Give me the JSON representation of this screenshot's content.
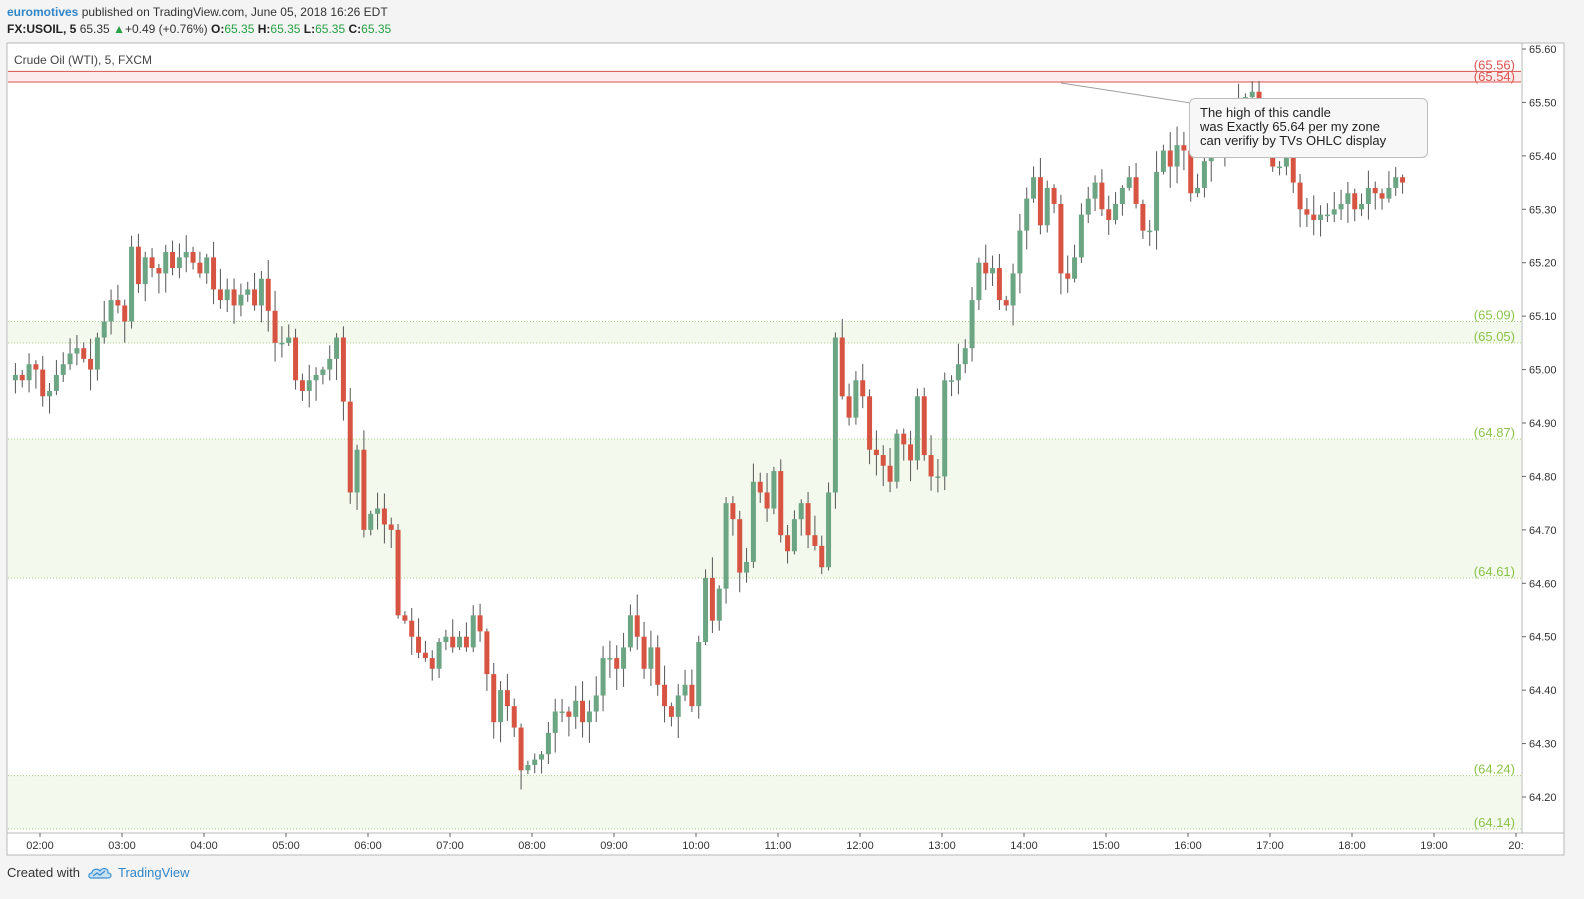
{
  "header": {
    "author": "euromotives",
    "published": " published on TradingView.com, June 05, 2018 16:26 EDT",
    "symbol": "FX:USOIL, 5",
    "price": "65.35",
    "change_arrow": "▲",
    "change": "+0.49 (+0.76%)",
    "o_label": "O:",
    "o_value": "65.35",
    "h_label": "H:",
    "h_value": "65.35",
    "l_label": "L:",
    "l_value": "65.35",
    "c_label": "C:",
    "c_value": "65.35"
  },
  "footer": {
    "created_with": "Created with",
    "brand": "TradingView",
    "logo_icon": "tradingview-cloud-icon"
  },
  "callout": {
    "lines": [
      "The high of this candle",
      "was Exactly 65.64 per my zone",
      "can verifiy by TVs OHLC display"
    ]
  },
  "colors": {
    "up": "#6ba583",
    "down": "#d75442",
    "resistance": "#d9534f",
    "support": "#8bc34a",
    "accent": "#2f86c9"
  },
  "chart_data": {
    "type": "candlestick",
    "legend_label": "Crude Oil (WTI), 5, FXCM",
    "ylim": [
      64.14,
      65.62
    ],
    "y_ticks": [
      "65.60",
      "65.50",
      "65.40",
      "65.30",
      "65.20",
      "65.10",
      "65.00",
      "64.90",
      "64.80",
      "64.70",
      "64.60",
      "64.50",
      "64.40",
      "64.30",
      "64.20"
    ],
    "x_range_hours": [
      1.65,
      20.1
    ],
    "x_ticks": [
      {
        "label": "02:00",
        "h": 2
      },
      {
        "label": "03:00",
        "h": 3
      },
      {
        "label": "04:00",
        "h": 4
      },
      {
        "label": "05:00",
        "h": 5
      },
      {
        "label": "06:00",
        "h": 6
      },
      {
        "label": "07:00",
        "h": 7
      },
      {
        "label": "08:00",
        "h": 8
      },
      {
        "label": "09:00",
        "h": 9
      },
      {
        "label": "10:00",
        "h": 10
      },
      {
        "label": "11:00",
        "h": 11
      },
      {
        "label": "12:00",
        "h": 12
      },
      {
        "label": "13:00",
        "h": 13
      },
      {
        "label": "14:00",
        "h": 14
      },
      {
        "label": "15:00",
        "h": 15
      },
      {
        "label": "16:00",
        "h": 16
      },
      {
        "label": "17:00",
        "h": 17
      },
      {
        "label": "18:00",
        "h": 18
      },
      {
        "label": "19:00",
        "h": 19
      },
      {
        "label": "20:",
        "h": 20
      }
    ],
    "resistance_zone": {
      "high": 65.56,
      "low": 65.54,
      "high_label": "(65.56)",
      "low_label": "(65.54)"
    },
    "support_levels": [
      {
        "value": 65.09,
        "label": "(65.09)"
      },
      {
        "value": 65.05,
        "label": "(65.05)"
      },
      {
        "value": 64.87,
        "label": "(64.87)"
      },
      {
        "value": 64.61,
        "label": "(64.61)"
      },
      {
        "value": 64.24,
        "label": "(64.24)"
      },
      {
        "value": 64.14,
        "label": "(64.14)"
      }
    ],
    "support_zones": [
      [
        65.05,
        65.09
      ],
      [
        64.61,
        64.87
      ],
      [
        64.14,
        64.24
      ]
    ],
    "annotation": {
      "target_h": 14.45,
      "target_price": 65.54
    },
    "closes": [
      64.99,
      64.98,
      65.01,
      65.0,
      64.95,
      64.96,
      64.99,
      65.01,
      65.03,
      65.04,
      65.02,
      65.0,
      65.06,
      65.09,
      65.13,
      65.12,
      65.09,
      65.23,
      65.16,
      65.21,
      65.19,
      65.18,
      65.22,
      65.19,
      65.21,
      65.22,
      65.2,
      65.18,
      65.21,
      65.15,
      65.13,
      65.15,
      65.12,
      65.14,
      65.15,
      65.12,
      65.17,
      65.11,
      65.05,
      65.05,
      65.06,
      64.98,
      64.96,
      64.98,
      64.99,
      65.0,
      65.02,
      65.06,
      64.94,
      64.77,
      64.85,
      64.7,
      64.73,
      64.74,
      64.71,
      64.7,
      64.54,
      64.53,
      64.5,
      64.47,
      64.46,
      64.44,
      64.49,
      64.5,
      64.48,
      64.5,
      64.48,
      64.54,
      64.51,
      64.43,
      64.34,
      64.4,
      64.37,
      64.33,
      64.25,
      64.26,
      64.27,
      64.28,
      64.32,
      64.36,
      64.36,
      64.35,
      64.38,
      64.34,
      64.36,
      64.39,
      64.46,
      64.46,
      64.44,
      64.48,
      64.54,
      64.5,
      64.44,
      64.48,
      64.41,
      64.37,
      64.35,
      64.39,
      64.41,
      64.37,
      64.49,
      64.61,
      64.53,
      64.59,
      64.75,
      64.72,
      64.62,
      64.64,
      64.79,
      64.77,
      64.74,
      64.81,
      64.69,
      64.66,
      64.72,
      64.75,
      64.69,
      64.67,
      64.63,
      64.77,
      65.06,
      64.95,
      64.91,
      64.98,
      64.95,
      64.85,
      64.84,
      64.82,
      64.79,
      64.88,
      64.86,
      64.83,
      64.95,
      64.84,
      64.8,
      64.8,
      64.98,
      64.98,
      65.01,
      65.04,
      65.13,
      65.2,
      65.18,
      65.19,
      65.13,
      65.12,
      65.18,
      65.26,
      65.32,
      65.36,
      65.27,
      65.34,
      65.31,
      65.18,
      65.17,
      65.21,
      65.29,
      65.32,
      65.35,
      65.3,
      65.28,
      65.31,
      65.34,
      65.36,
      65.31,
      65.26,
      65.26,
      65.37,
      65.41,
      65.38,
      65.42,
      65.41,
      65.33,
      65.34,
      65.39,
      65.42,
      65.43,
      65.41,
      65.43,
      65.47,
      65.51,
      65.52,
      65.47,
      65.43,
      65.38,
      65.38,
      65.4,
      65.35,
      65.3,
      65.29,
      65.28,
      65.29,
      65.29,
      65.3,
      65.31,
      65.33,
      65.3,
      65.31,
      65.34,
      65.33,
      65.32,
      65.34,
      65.36,
      65.35
    ]
  }
}
